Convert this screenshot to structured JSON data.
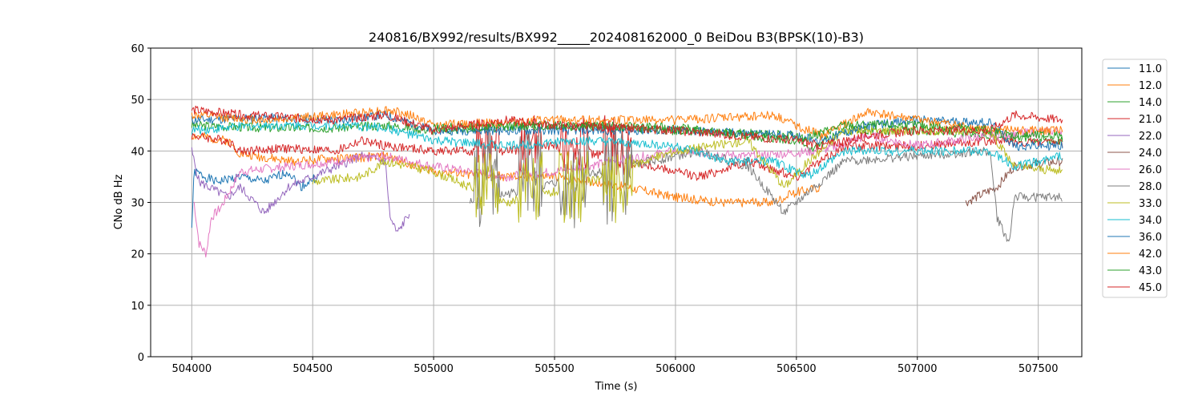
{
  "chart_data": {
    "type": "line",
    "title": "240816/BX992/results/BX992_____202408162000_0 BeiDou B3(BPSK(10)-B3)",
    "xlabel": "Time (s)",
    "ylabel": "CNo dB Hz",
    "xlim": [
      503830,
      507680
    ],
    "ylim": [
      0,
      60
    ],
    "xticks": [
      504000,
      504500,
      505000,
      505500,
      506000,
      506500,
      507000,
      507500
    ],
    "yticks": [
      0,
      10,
      20,
      30,
      40,
      50,
      60
    ],
    "grid": true,
    "legend_position": "outside-right",
    "series": [
      {
        "name": "11.0",
        "color": "#1f77b4",
        "points": [
          [
            504000,
            25
          ],
          [
            504010,
            36
          ],
          [
            504100,
            34
          ],
          [
            504200,
            35
          ],
          [
            504300,
            34
          ],
          [
            504400,
            36
          ],
          [
            504450,
            33
          ],
          [
            504520,
            35
          ]
        ]
      },
      {
        "name": "12.0",
        "color": "#ff7f0e",
        "points": [
          [
            504000,
            43
          ],
          [
            504150,
            42
          ],
          [
            504200,
            39.5
          ],
          [
            504400,
            38
          ],
          [
            504600,
            38.5
          ],
          [
            504800,
            39
          ],
          [
            505000,
            36
          ],
          [
            505300,
            35
          ],
          [
            505500,
            35
          ],
          [
            505800,
            33
          ],
          [
            506000,
            31
          ],
          [
            506200,
            30
          ],
          [
            506400,
            30
          ],
          [
            506500,
            32
          ],
          [
            506600,
            33
          ]
        ]
      },
      {
        "name": "14.0",
        "color": "#2ca02c",
        "points": [
          [
            504000,
            45
          ],
          [
            504300,
            44.5
          ],
          [
            504600,
            44.5
          ],
          [
            504800,
            45
          ],
          [
            505000,
            44
          ],
          [
            505500,
            45
          ],
          [
            506000,
            44
          ],
          [
            506500,
            43
          ],
          [
            506550,
            40
          ],
          [
            506700,
            44
          ],
          [
            507000,
            44
          ],
          [
            507300,
            43
          ],
          [
            507600,
            42
          ]
        ]
      },
      {
        "name": "21.0",
        "color": "#d62728",
        "points": [
          [
            504000,
            43
          ],
          [
            504150,
            42
          ],
          [
            504200,
            40
          ],
          [
            504400,
            40.5
          ],
          [
            504600,
            40
          ],
          [
            504700,
            42
          ],
          [
            504800,
            41
          ],
          [
            505000,
            40
          ],
          [
            505300,
            40
          ],
          [
            505500,
            41
          ],
          [
            505900,
            37
          ],
          [
            506100,
            35
          ],
          [
            506300,
            38
          ],
          [
            506500,
            35
          ],
          [
            506600,
            38
          ],
          [
            506700,
            41
          ],
          [
            507000,
            41
          ],
          [
            507300,
            42
          ],
          [
            507600,
            41.5
          ]
        ],
        "bursts": [
          [
            505170,
            505270,
            35,
            47
          ],
          [
            505350,
            505450,
            35,
            47
          ],
          [
            505520,
            505640,
            35,
            47
          ],
          [
            505700,
            505820,
            35,
            47
          ]
        ]
      },
      {
        "name": "22.0",
        "color": "#9467bd",
        "points": [
          [
            504000,
            40
          ],
          [
            504030,
            34
          ],
          [
            504150,
            31
          ],
          [
            504200,
            33
          ],
          [
            504300,
            28
          ],
          [
            504400,
            33
          ],
          [
            504500,
            35
          ],
          [
            504700,
            39
          ],
          [
            504800,
            38
          ],
          [
            504820,
            27
          ],
          [
            504850,
            24
          ],
          [
            504900,
            28
          ]
        ]
      },
      {
        "name": "24.0",
        "color": "#8c564b",
        "points": [
          [
            507200,
            30
          ],
          [
            507330,
            33
          ],
          [
            507400,
            37
          ],
          [
            507600,
            38
          ]
        ]
      },
      {
        "name": "26.0",
        "color": "#e377c2",
        "points": [
          [
            504010,
            30
          ],
          [
            504030,
            22
          ],
          [
            504060,
            20
          ],
          [
            504080,
            27
          ],
          [
            504120,
            29
          ],
          [
            504200,
            36
          ],
          [
            504400,
            37
          ],
          [
            504600,
            38
          ],
          [
            504800,
            39
          ],
          [
            505000,
            37
          ],
          [
            505300,
            35
          ],
          [
            505500,
            36
          ],
          [
            506000,
            40
          ],
          [
            506300,
            39
          ],
          [
            506600,
            40
          ],
          [
            506800,
            43
          ],
          [
            507000,
            41
          ],
          [
            507300,
            43
          ],
          [
            507600,
            44
          ]
        ]
      },
      {
        "name": "28.0",
        "color": "#7f7f7f",
        "points": [
          [
            505150,
            30
          ],
          [
            505800,
            37
          ],
          [
            506100,
            40
          ],
          [
            506300,
            37
          ],
          [
            506450,
            28
          ],
          [
            506550,
            32
          ],
          [
            506700,
            38
          ],
          [
            507000,
            39
          ],
          [
            507300,
            40
          ],
          [
            507330,
            27
          ],
          [
            507380,
            22
          ],
          [
            507400,
            31
          ],
          [
            507600,
            31
          ]
        ],
        "bursts": [
          [
            505170,
            505270,
            25,
            45
          ],
          [
            505350,
            505450,
            25,
            45
          ],
          [
            505520,
            505640,
            25,
            45
          ],
          [
            505700,
            505820,
            25,
            45
          ]
        ]
      },
      {
        "name": "33.0",
        "color": "#bcbd22",
        "points": [
          [
            504500,
            34
          ],
          [
            504700,
            35
          ],
          [
            504800,
            38
          ],
          [
            505000,
            36
          ],
          [
            505200,
            32
          ],
          [
            505300,
            30
          ],
          [
            505600,
            33
          ],
          [
            505800,
            37
          ],
          [
            506000,
            40
          ],
          [
            506300,
            42
          ],
          [
            506450,
            33
          ],
          [
            506550,
            38
          ],
          [
            506700,
            44
          ],
          [
            507000,
            44
          ],
          [
            507300,
            44
          ],
          [
            507400,
            37
          ],
          [
            507600,
            36
          ]
        ],
        "bursts": [
          [
            505170,
            505270,
            26,
            40
          ],
          [
            505350,
            505450,
            26,
            40
          ],
          [
            505520,
            505640,
            26,
            40
          ],
          [
            505700,
            505820,
            26,
            40
          ]
        ]
      },
      {
        "name": "34.0",
        "color": "#17becf",
        "points": [
          [
            504000,
            44
          ],
          [
            504300,
            45
          ],
          [
            504600,
            45
          ],
          [
            504800,
            44.5
          ],
          [
            505000,
            42
          ],
          [
            505300,
            41
          ],
          [
            505600,
            42
          ],
          [
            506000,
            41
          ],
          [
            506200,
            38
          ],
          [
            506400,
            38
          ],
          [
            506550,
            35
          ],
          [
            506700,
            40
          ],
          [
            507000,
            40
          ],
          [
            507300,
            40
          ],
          [
            507400,
            37
          ],
          [
            507600,
            39
          ]
        ]
      },
      {
        "name": "36.0",
        "color": "#1f77b4",
        "points": [
          [
            504000,
            46
          ],
          [
            504300,
            46.5
          ],
          [
            504600,
            46
          ],
          [
            504800,
            47
          ],
          [
            505000,
            44
          ],
          [
            505500,
            44
          ],
          [
            506000,
            44
          ],
          [
            506500,
            43
          ],
          [
            506600,
            42
          ],
          [
            506800,
            45
          ],
          [
            507000,
            46
          ],
          [
            507300,
            45.5
          ],
          [
            507400,
            41
          ],
          [
            507600,
            41
          ]
        ]
      },
      {
        "name": "42.0",
        "color": "#ff7f0e",
        "points": [
          [
            504000,
            47
          ],
          [
            504300,
            46
          ],
          [
            504600,
            47
          ],
          [
            504800,
            48
          ],
          [
            504900,
            47
          ],
          [
            505000,
            45
          ],
          [
            505500,
            46
          ],
          [
            506000,
            46
          ],
          [
            506400,
            47
          ],
          [
            506600,
            43
          ],
          [
            506800,
            47.5
          ],
          [
            507000,
            46
          ],
          [
            507300,
            44
          ],
          [
            507600,
            44
          ]
        ]
      },
      {
        "name": "43.0",
        "color": "#2ca02c",
        "points": [
          [
            505000,
            44.5
          ],
          [
            505500,
            45
          ],
          [
            506000,
            44.5
          ],
          [
            506500,
            42
          ],
          [
            506700,
            45
          ],
          [
            507000,
            45
          ],
          [
            507300,
            44
          ],
          [
            507400,
            43
          ],
          [
            507600,
            43
          ]
        ]
      },
      {
        "name": "45.0",
        "color": "#d62728",
        "points": [
          [
            504000,
            48
          ],
          [
            504200,
            47
          ],
          [
            504600,
            46
          ],
          [
            504800,
            47
          ],
          [
            505000,
            44
          ],
          [
            505300,
            46
          ],
          [
            505500,
            45
          ],
          [
            506000,
            44
          ],
          [
            506500,
            42
          ],
          [
            506600,
            41
          ],
          [
            506800,
            43
          ],
          [
            507000,
            44
          ],
          [
            507300,
            44
          ],
          [
            507400,
            47
          ],
          [
            507600,
            46
          ]
        ]
      }
    ]
  }
}
